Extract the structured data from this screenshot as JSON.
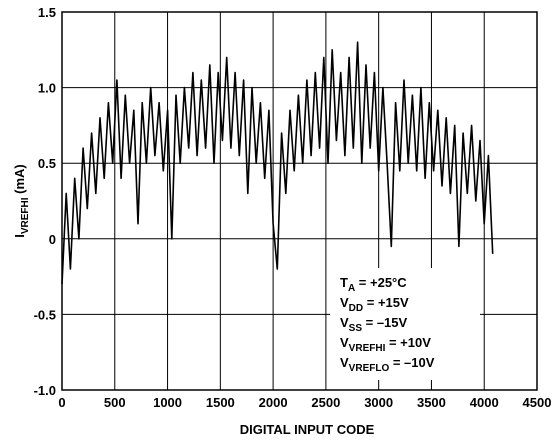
{
  "chart_data": {
    "type": "line",
    "x_label": "DIGITAL INPUT CODE",
    "y_label": {
      "main": "I",
      "sub": "VREFHI",
      "rest": " (mA)"
    },
    "annotations": [
      {
        "main": "T",
        "sub": "A",
        "rest": " = +25°C"
      },
      {
        "main": "V",
        "sub": "DD",
        "rest": " = +15V"
      },
      {
        "main": "V",
        "sub": "SS",
        "rest": " = –15V"
      },
      {
        "main": "V",
        "sub": "VREFHI",
        "rest": " = +10V"
      },
      {
        "main": "V",
        "sub": "VREFLO",
        "rest": " = –10V"
      }
    ],
    "color": "#000000",
    "grid": true,
    "xlim": [
      0,
      4500
    ],
    "xticks": [
      0,
      500,
      1000,
      1500,
      2000,
      2500,
      3000,
      3500,
      4000,
      4500
    ],
    "ylim": [
      -1.0,
      1.5
    ],
    "yticks": [
      1.5,
      {
        "value": 1.0,
        "label": "1.0"
      },
      0.5,
      0,
      -0.5,
      {
        "value": -1.0,
        "label": "-1.0"
      }
    ],
    "x": [
      0,
      40,
      80,
      120,
      160,
      200,
      240,
      280,
      320,
      360,
      400,
      440,
      480,
      520,
      560,
      600,
      640,
      680,
      720,
      760,
      800,
      840,
      880,
      920,
      960,
      1000,
      1040,
      1080,
      1120,
      1160,
      1200,
      1240,
      1280,
      1320,
      1360,
      1400,
      1440,
      1480,
      1520,
      1560,
      1600,
      1640,
      1680,
      1720,
      1760,
      1800,
      1840,
      1880,
      1920,
      1960,
      2000,
      2040,
      2080,
      2120,
      2160,
      2200,
      2240,
      2280,
      2320,
      2360,
      2400,
      2440,
      2480,
      2520,
      2560,
      2600,
      2640,
      2680,
      2720,
      2760,
      2800,
      2840,
      2880,
      2920,
      2960,
      3000,
      3040,
      3080,
      3120,
      3160,
      3200,
      3240,
      3280,
      3320,
      3360,
      3400,
      3440,
      3480,
      3520,
      3560,
      3600,
      3640,
      3680,
      3720,
      3760,
      3800,
      3840,
      3880,
      3920,
      3960,
      4000,
      4040,
      4080
    ],
    "values": [
      -0.3,
      0.3,
      -0.2,
      0.4,
      0.0,
      0.6,
      0.2,
      0.7,
      0.3,
      0.8,
      0.4,
      0.9,
      0.5,
      1.05,
      0.4,
      0.95,
      0.5,
      0.85,
      0.1,
      0.9,
      0.5,
      1.0,
      0.55,
      0.9,
      0.45,
      0.85,
      0.0,
      0.95,
      0.5,
      1.0,
      0.6,
      1.1,
      0.55,
      1.05,
      0.6,
      1.15,
      0.5,
      1.1,
      0.65,
      1.2,
      0.6,
      1.1,
      0.55,
      1.05,
      0.3,
      1.0,
      0.5,
      0.9,
      0.4,
      0.85,
      0.1,
      -0.2,
      0.7,
      0.3,
      0.85,
      0.45,
      0.95,
      0.5,
      1.05,
      0.55,
      1.1,
      0.6,
      1.2,
      0.5,
      1.25,
      0.65,
      1.1,
      0.55,
      1.2,
      0.6,
      1.3,
      0.5,
      1.15,
      0.6,
      1.1,
      0.45,
      1.0,
      0.5,
      -0.05,
      0.9,
      0.45,
      1.05,
      0.5,
      0.95,
      0.45,
      1.0,
      0.4,
      0.9,
      0.45,
      0.85,
      0.35,
      0.8,
      0.3,
      0.75,
      -0.05,
      0.7,
      0.3,
      0.75,
      0.25,
      0.65,
      0.1,
      0.55,
      -0.1
    ]
  }
}
